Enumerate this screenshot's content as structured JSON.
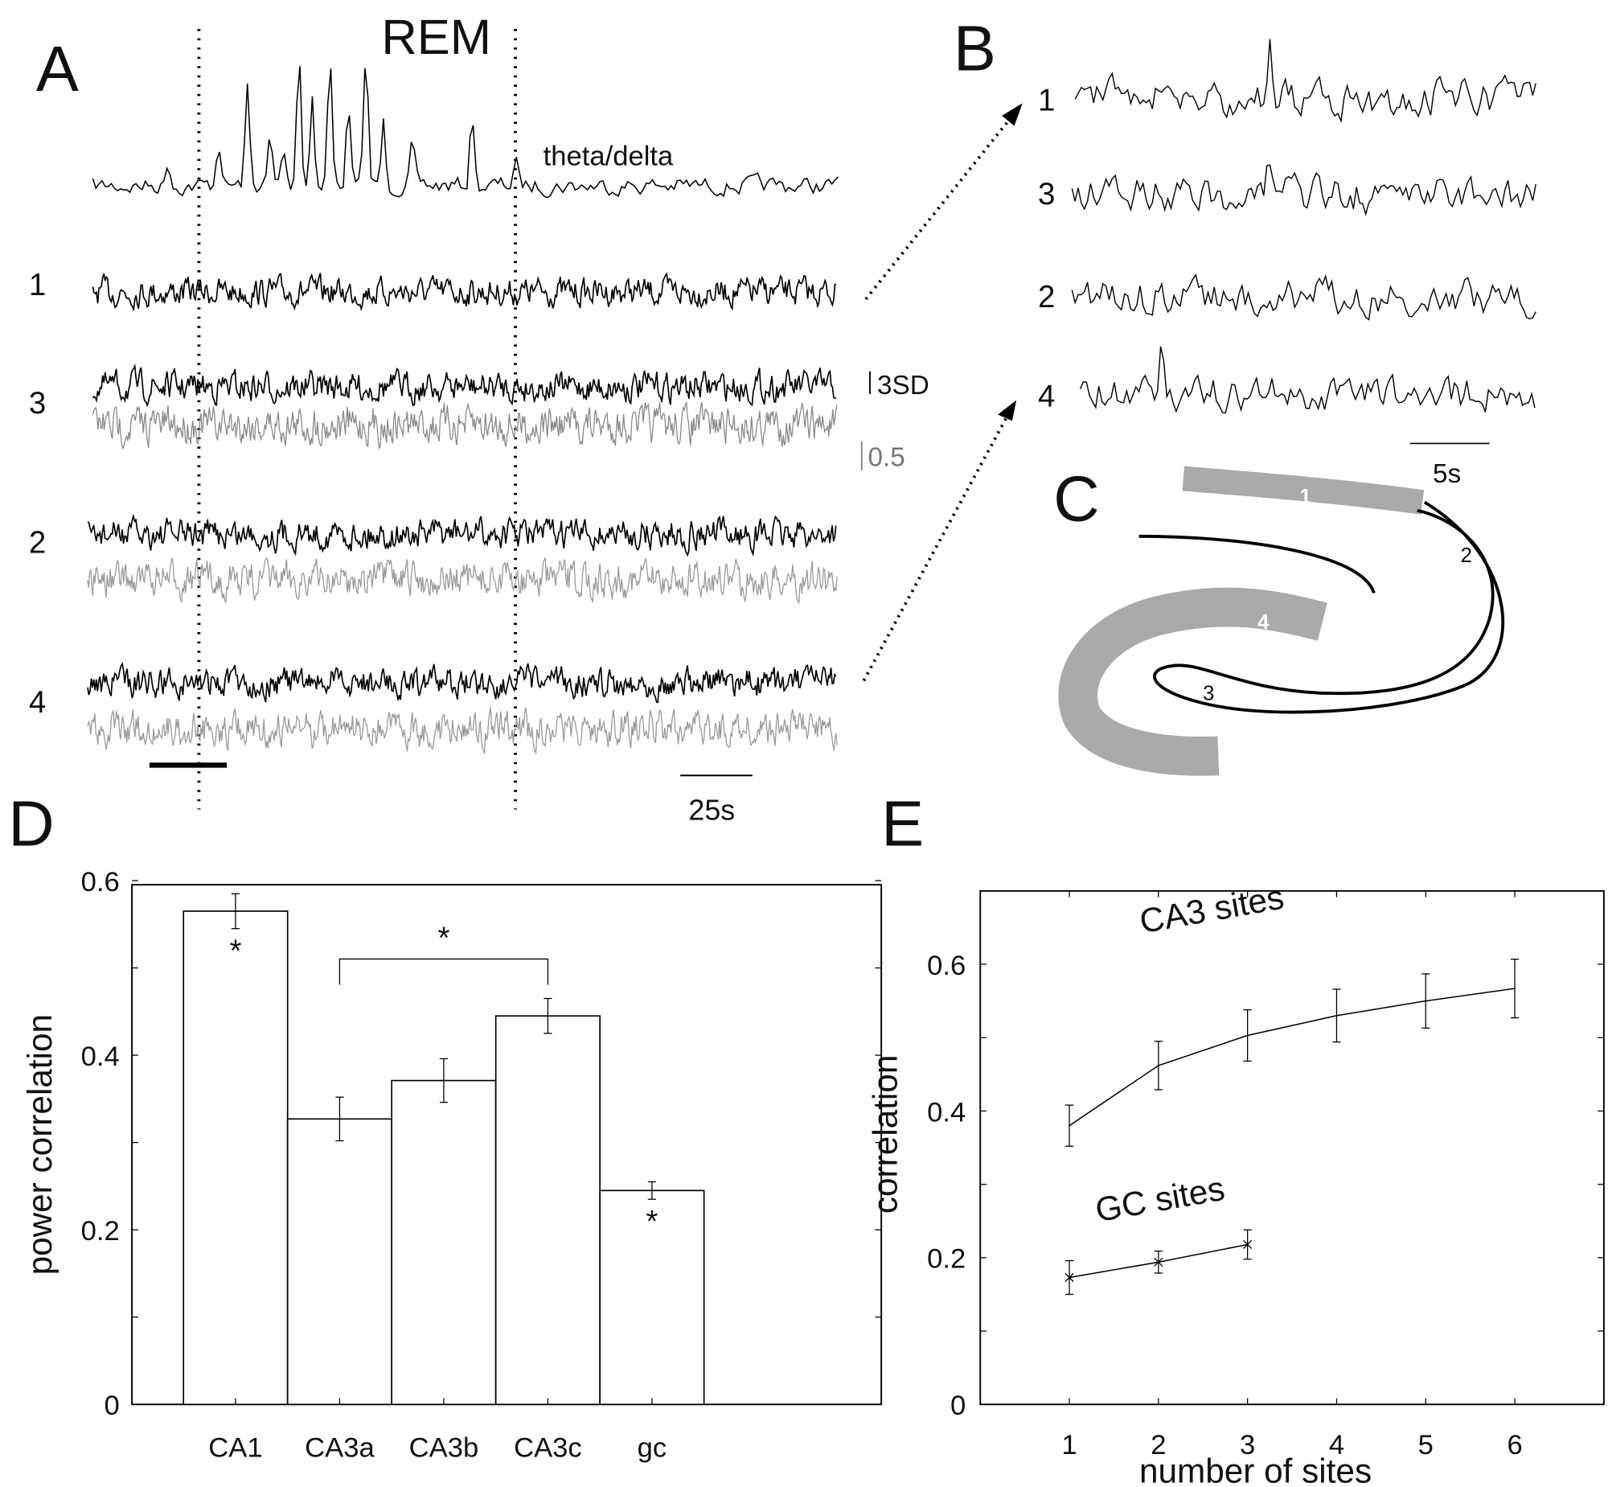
{
  "panels": {
    "a": "A",
    "b": "B",
    "c": "C",
    "d": "D",
    "e": "E"
  },
  "panel_a": {
    "title": "REM",
    "theta_delta_label": "theta/delta",
    "trace_labels": [
      "1",
      "3",
      "2",
      "4"
    ],
    "scale_sd": "3SD",
    "scale_ratio": "0.5",
    "time_scale": "25s"
  },
  "panel_b": {
    "trace_labels": [
      "1",
      "3",
      "2",
      "4"
    ],
    "time_scale": "5s"
  },
  "panel_c": {
    "region_labels": [
      "1",
      "2",
      "3",
      "4"
    ],
    "region_colors": {
      "highlighted": "#a9a9a9",
      "outline": "#000000"
    }
  },
  "chart_data": [
    {
      "type": "bar",
      "panel": "D",
      "ylabel": "power correlation",
      "xlabel": "",
      "categories": [
        "CA1",
        "CA3a",
        "CA3b",
        "CA3c",
        "gc"
      ],
      "values": [
        0.565,
        0.327,
        0.371,
        0.445,
        0.245
      ],
      "errors": [
        0.02,
        0.025,
        0.025,
        0.02,
        0.01
      ],
      "ylim": [
        0,
        0.6
      ],
      "yticks": [
        "0",
        "0.2",
        "0.4",
        "0.6"
      ],
      "significance": {
        "marks": [
          "CA1",
          "gc"
        ],
        "bracket": [
          "CA3a",
          "CA3c"
        ],
        "symbol": "*"
      },
      "grid": false
    },
    {
      "type": "line",
      "panel": "E",
      "xlabel": "number of sites",
      "ylabel": "correlation",
      "x": [
        1,
        2,
        3,
        4,
        5,
        6
      ],
      "xticks": [
        "1",
        "2",
        "3",
        "4",
        "5",
        "6"
      ],
      "yticks": [
        "0",
        "0.2",
        "0.4",
        "0.6"
      ],
      "xlim": [
        0,
        7
      ],
      "ylim": [
        0,
        0.7
      ],
      "series": [
        {
          "name": "CA3 sites",
          "x": [
            1,
            2,
            3,
            4,
            5,
            6
          ],
          "values": [
            0.38,
            0.462,
            0.503,
            0.53,
            0.55,
            0.567
          ],
          "errors": [
            0.028,
            0.033,
            0.035,
            0.036,
            0.037,
            0.04
          ],
          "marker": "none"
        },
        {
          "name": "GC sites",
          "x": [
            1,
            2,
            3
          ],
          "values": [
            0.173,
            0.194,
            0.218
          ],
          "errors": [
            0.023,
            0.015,
            0.02
          ],
          "marker": "x"
        }
      ],
      "grid": false
    }
  ]
}
